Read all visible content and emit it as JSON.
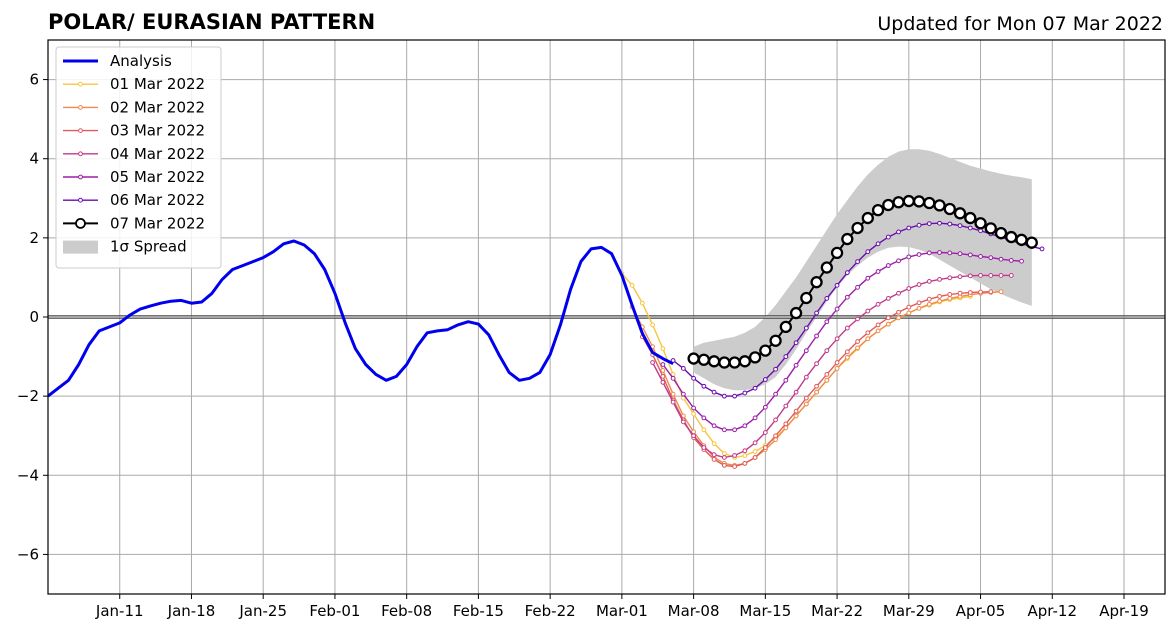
{
  "chart_data": {
    "type": "line",
    "title": "POLAR/ EURASIAN  PATTERN",
    "subtitle": "Updated for Mon 07 Mar 2022",
    "xlabel": "",
    "ylabel": "",
    "x_start": "2022-01-04",
    "xlim_days": [
      0,
      109
    ],
    "ylim": [
      -7,
      7
    ],
    "y_ticks": [
      -6,
      -4,
      -2,
      0,
      2,
      4,
      6
    ],
    "y_tick_labels": [
      "−6",
      "−4",
      "−2",
      "0",
      "2",
      "4",
      "6"
    ],
    "x_ticks": [
      {
        "day": 7,
        "label": "Jan-11"
      },
      {
        "day": 14,
        "label": "Jan-18"
      },
      {
        "day": 21,
        "label": "Jan-25"
      },
      {
        "day": 28,
        "label": "Feb-01"
      },
      {
        "day": 35,
        "label": "Feb-08"
      },
      {
        "day": 42,
        "label": "Feb-15"
      },
      {
        "day": 49,
        "label": "Feb-22"
      },
      {
        "day": 56,
        "label": "Mar-01"
      },
      {
        "day": 63,
        "label": "Mar-08"
      },
      {
        "day": 70,
        "label": "Mar-15"
      },
      {
        "day": 77,
        "label": "Mar-22"
      },
      {
        "day": 84,
        "label": "Mar-29"
      },
      {
        "day": 91,
        "label": "Apr-05"
      },
      {
        "day": 98,
        "label": "Apr-12"
      },
      {
        "day": 105,
        "label": "Apr-19"
      }
    ],
    "grid": true,
    "legend_position": "top-left",
    "analysis": {
      "name": "Analysis",
      "color": "#0000ee",
      "start_day": 0,
      "values": [
        -2.0,
        -1.8,
        -1.6,
        -1.2,
        -0.7,
        -0.35,
        -0.25,
        -0.15,
        0.05,
        0.2,
        0.28,
        0.35,
        0.4,
        0.42,
        0.35,
        0.38,
        0.6,
        0.95,
        1.2,
        1.3,
        1.4,
        1.5,
        1.65,
        1.85,
        1.92,
        1.82,
        1.6,
        1.2,
        0.6,
        -0.15,
        -0.8,
        -1.2,
        -1.45,
        -1.6,
        -1.5,
        -1.2,
        -0.75,
        -0.4,
        -0.35,
        -0.32,
        -0.2,
        -0.12,
        -0.18,
        -0.45,
        -0.95,
        -1.4,
        -1.6,
        -1.55,
        -1.4,
        -0.95,
        -0.2,
        0.7,
        1.4,
        1.72,
        1.76,
        1.6,
        1.05,
        0.3,
        -0.42,
        -0.9,
        -1.05,
        -1.18
      ]
    },
    "forecasts": [
      {
        "name": "01 Mar 2022",
        "color": "#f7c53d",
        "start_day": 56,
        "values": [
          1.1,
          0.8,
          0.35,
          -0.2,
          -0.8,
          -1.45,
          -2.05,
          -2.45,
          -2.85,
          -3.2,
          -3.45,
          -3.55,
          -3.5,
          -3.4,
          -3.25,
          -3.05,
          -2.8,
          -2.5,
          -2.2,
          -1.9,
          -1.6,
          -1.3,
          -1.05,
          -0.8,
          -0.55,
          -0.35,
          -0.18,
          -0.02,
          0.1,
          0.22,
          0.3,
          0.38,
          0.44,
          0.48,
          0.52
        ]
      },
      {
        "name": "02 Mar 2022",
        "color": "#f08a4b",
        "start_day": 57,
        "values": [
          0.25,
          -0.25,
          -0.75,
          -1.35,
          -1.95,
          -2.5,
          -2.9,
          -3.25,
          -3.55,
          -3.7,
          -3.75,
          -3.7,
          -3.55,
          -3.35,
          -3.1,
          -2.8,
          -2.5,
          -2.2,
          -1.9,
          -1.6,
          -1.3,
          -1.02,
          -0.78,
          -0.55,
          -0.35,
          -0.18,
          -0.02,
          0.1,
          0.22,
          0.32,
          0.4,
          0.47,
          0.52,
          0.56,
          0.6,
          0.62,
          0.64
        ]
      },
      {
        "name": "03 Mar 2022",
        "color": "#e05c5c",
        "start_day": 58,
        "values": [
          -0.5,
          -0.95,
          -1.5,
          -2.1,
          -2.6,
          -3.05,
          -3.35,
          -3.6,
          -3.75,
          -3.78,
          -3.7,
          -3.55,
          -3.3,
          -3.0,
          -2.7,
          -2.38,
          -2.05,
          -1.75,
          -1.45,
          -1.15,
          -0.88,
          -0.62,
          -0.4,
          -0.2,
          -0.02,
          0.12,
          0.25,
          0.36,
          0.45,
          0.52,
          0.57,
          0.6,
          0.62,
          0.63,
          0.64
        ]
      },
      {
        "name": "04 Mar 2022",
        "color": "#c13a8b",
        "start_day": 59,
        "values": [
          -1.15,
          -1.65,
          -2.15,
          -2.65,
          -3.0,
          -3.3,
          -3.48,
          -3.55,
          -3.5,
          -3.38,
          -3.18,
          -2.92,
          -2.6,
          -2.25,
          -1.9,
          -1.52,
          -1.18,
          -0.85,
          -0.55,
          -0.28,
          -0.05,
          0.15,
          0.32,
          0.47,
          0.6,
          0.72,
          0.82,
          0.9,
          0.95,
          0.99,
          1.02,
          1.04,
          1.05,
          1.05,
          1.05,
          1.05
        ]
      },
      {
        "name": "05 Mar 2022",
        "color": "#9b1fa8",
        "start_day": 60,
        "values": [
          -1.2,
          -1.55,
          -1.95,
          -2.3,
          -2.55,
          -2.75,
          -2.85,
          -2.85,
          -2.75,
          -2.55,
          -2.28,
          -1.95,
          -1.6,
          -1.22,
          -0.85,
          -0.48,
          -0.12,
          0.2,
          0.5,
          0.75,
          0.98,
          1.15,
          1.3,
          1.42,
          1.52,
          1.58,
          1.62,
          1.63,
          1.62,
          1.6,
          1.57,
          1.53,
          1.5,
          1.46,
          1.43,
          1.41
        ]
      },
      {
        "name": "06 Mar 2022",
        "color": "#6a0dad",
        "start_day": 61,
        "values": [
          -1.1,
          -1.3,
          -1.55,
          -1.75,
          -1.9,
          -2.0,
          -2.0,
          -1.92,
          -1.8,
          -1.58,
          -1.32,
          -1.0,
          -0.65,
          -0.28,
          0.1,
          0.47,
          0.8,
          1.12,
          1.4,
          1.65,
          1.85,
          2.02,
          2.15,
          2.25,
          2.32,
          2.36,
          2.37,
          2.35,
          2.31,
          2.25,
          2.18,
          2.1,
          2.02,
          1.93,
          1.85,
          1.78,
          1.72
        ]
      },
      {
        "name": "07 Mar 2022",
        "color": "#000000",
        "start_day": 63,
        "markers": "open-circle",
        "values": [
          -1.05,
          -1.08,
          -1.12,
          -1.15,
          -1.15,
          -1.12,
          -1.02,
          -0.85,
          -0.6,
          -0.25,
          0.1,
          0.48,
          0.88,
          1.25,
          1.62,
          1.97,
          2.25,
          2.5,
          2.7,
          2.83,
          2.9,
          2.93,
          2.92,
          2.88,
          2.82,
          2.73,
          2.62,
          2.5,
          2.37,
          2.24,
          2.12,
          2.02,
          1.95,
          1.88
        ]
      }
    ],
    "spread": {
      "name": "1σ Spread",
      "color": "#cccccc",
      "start_day": 63,
      "upper": [
        -0.75,
        -0.65,
        -0.6,
        -0.55,
        -0.5,
        -0.4,
        -0.25,
        0.0,
        0.3,
        0.65,
        1.0,
        1.4,
        1.8,
        2.2,
        2.6,
        2.95,
        3.3,
        3.6,
        3.85,
        4.05,
        4.18,
        4.24,
        4.24,
        4.2,
        4.12,
        4.02,
        3.92,
        3.82,
        3.75,
        3.68,
        3.62,
        3.57,
        3.53,
        3.48
      ],
      "lower": [
        -1.4,
        -1.55,
        -1.7,
        -1.8,
        -1.85,
        -1.85,
        -1.8,
        -1.7,
        -1.52,
        -1.2,
        -0.82,
        -0.4,
        0.0,
        0.4,
        0.75,
        1.05,
        1.3,
        1.5,
        1.65,
        1.75,
        1.78,
        1.77,
        1.7,
        1.6,
        1.45,
        1.3,
        1.15,
        1.0,
        0.85,
        0.7,
        0.58,
        0.47,
        0.37,
        0.28
      ]
    }
  }
}
